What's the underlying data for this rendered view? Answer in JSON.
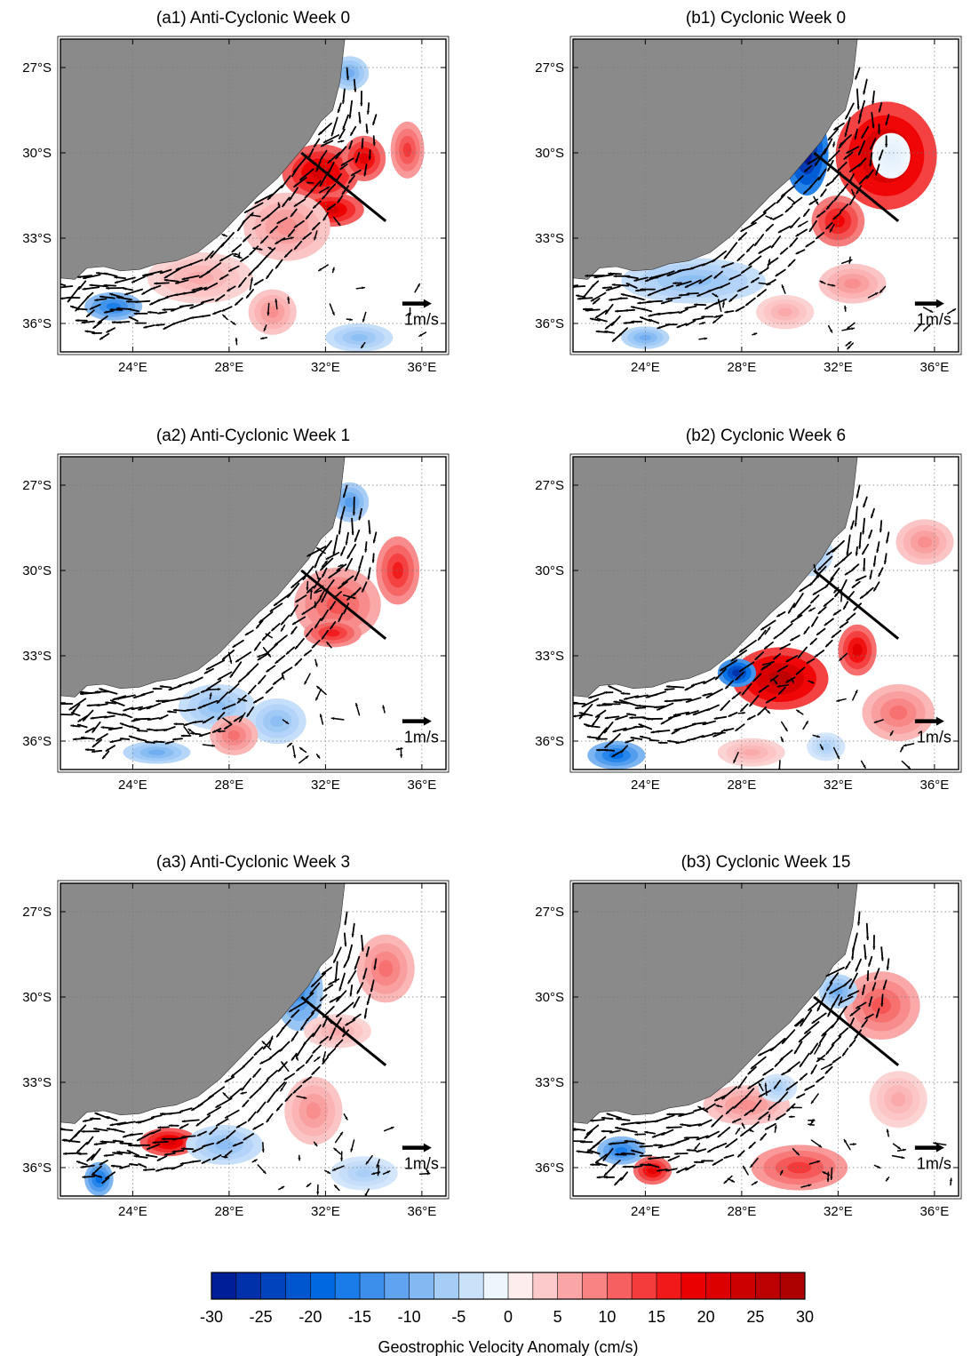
{
  "panels": [
    {
      "id": "a1",
      "title": "(a1) Anti-Cyclonic Week 0",
      "scale_label": "1m/s",
      "blobs": [
        {
          "lon": 31.8,
          "lat": -30.7,
          "rx": 1.6,
          "ry": 1.0,
          "v": 22
        },
        {
          "lon": 33.6,
          "lat": -30.2,
          "rx": 0.9,
          "ry": 0.8,
          "v": 20
        },
        {
          "lon": 32.2,
          "lat": -32.0,
          "rx": 1.4,
          "ry": 0.6,
          "v": 22
        },
        {
          "lon": 35.4,
          "lat": -29.9,
          "rx": 0.7,
          "ry": 1.0,
          "v": 14
        },
        {
          "lon": 30.4,
          "lat": -32.6,
          "rx": 1.8,
          "ry": 1.2,
          "v": 8
        },
        {
          "lon": 33.0,
          "lat": -27.2,
          "rx": 0.8,
          "ry": 0.6,
          "v": -10
        },
        {
          "lon": 23.2,
          "lat": -35.4,
          "rx": 1.2,
          "ry": 0.5,
          "v": -16
        },
        {
          "lon": 26.8,
          "lat": -34.4,
          "rx": 2.2,
          "ry": 0.9,
          "v": 6
        },
        {
          "lon": 29.8,
          "lat": -35.6,
          "rx": 1.0,
          "ry": 0.8,
          "v": 8
        },
        {
          "lon": 33.4,
          "lat": -36.5,
          "rx": 1.4,
          "ry": 0.5,
          "v": -8
        }
      ]
    },
    {
      "id": "b1",
      "title": "(b1) Cyclonic Week 0",
      "scale_label": "1m/s",
      "blobs": [
        {
          "lon": 30.7,
          "lat": -30.0,
          "rx": 0.9,
          "ry": 1.5,
          "v": -30
        },
        {
          "lon": 34.0,
          "lat": -30.1,
          "rx": 2.1,
          "ry": 1.9,
          "v": 26
        },
        {
          "lon": 34.2,
          "lat": -30.1,
          "rx": 0.8,
          "ry": 0.8,
          "v": -2
        },
        {
          "lon": 32.0,
          "lat": -32.4,
          "rx": 1.1,
          "ry": 0.9,
          "v": 18
        },
        {
          "lon": 26.0,
          "lat": -34.5,
          "rx": 3.0,
          "ry": 0.8,
          "v": -8
        },
        {
          "lon": 32.6,
          "lat": -34.6,
          "rx": 1.4,
          "ry": 0.7,
          "v": 8
        },
        {
          "lon": 29.8,
          "lat": -35.6,
          "rx": 1.2,
          "ry": 0.6,
          "v": 6
        },
        {
          "lon": 24.0,
          "lat": -36.5,
          "rx": 1.0,
          "ry": 0.4,
          "v": -10
        }
      ]
    },
    {
      "id": "a2",
      "title": "(a2) Anti-Cyclonic Week 1",
      "scale_label": "1m/s",
      "blobs": [
        {
          "lon": 32.5,
          "lat": -31.2,
          "rx": 1.8,
          "ry": 1.3,
          "v": 12
        },
        {
          "lon": 35.0,
          "lat": -30.0,
          "rx": 0.9,
          "ry": 1.2,
          "v": 16
        },
        {
          "lon": 32.3,
          "lat": -32.2,
          "rx": 1.2,
          "ry": 0.5,
          "v": 16
        },
        {
          "lon": 33.0,
          "lat": -27.6,
          "rx": 0.8,
          "ry": 0.7,
          "v": -12
        },
        {
          "lon": 27.5,
          "lat": -34.8,
          "rx": 1.6,
          "ry": 0.8,
          "v": -8
        },
        {
          "lon": 30.0,
          "lat": -35.3,
          "rx": 1.2,
          "ry": 0.8,
          "v": -8
        },
        {
          "lon": 28.2,
          "lat": -35.8,
          "rx": 1.0,
          "ry": 0.7,
          "v": 10
        },
        {
          "lon": 25.0,
          "lat": -36.4,
          "rx": 1.4,
          "ry": 0.4,
          "v": -10
        }
      ]
    },
    {
      "id": "b2",
      "title": "(b2) Cyclonic Week 6",
      "scale_label": "1m/s",
      "blobs": [
        {
          "lon": 29.6,
          "lat": -33.8,
          "rx": 2.0,
          "ry": 1.1,
          "v": 26
        },
        {
          "lon": 27.8,
          "lat": -33.6,
          "rx": 0.8,
          "ry": 0.5,
          "v": -26
        },
        {
          "lon": 32.8,
          "lat": -32.8,
          "rx": 0.8,
          "ry": 0.9,
          "v": 20
        },
        {
          "lon": 30.8,
          "lat": -29.4,
          "rx": 1.0,
          "ry": 0.8,
          "v": -8
        },
        {
          "lon": 35.6,
          "lat": -29.0,
          "rx": 1.2,
          "ry": 0.8,
          "v": 8
        },
        {
          "lon": 22.8,
          "lat": -36.5,
          "rx": 1.2,
          "ry": 0.5,
          "v": -18
        },
        {
          "lon": 34.5,
          "lat": -35.0,
          "rx": 1.5,
          "ry": 1.0,
          "v": 10
        },
        {
          "lon": 28.4,
          "lat": -36.4,
          "rx": 1.4,
          "ry": 0.5,
          "v": 6
        },
        {
          "lon": 31.5,
          "lat": -36.2,
          "rx": 0.8,
          "ry": 0.5,
          "v": -6
        }
      ]
    },
    {
      "id": "a3",
      "title": "(a3) Anti-Cyclonic Week 3",
      "scale_label": "1m/s",
      "blobs": [
        {
          "lon": 30.9,
          "lat": -29.8,
          "rx": 1.0,
          "ry": 1.4,
          "v": -14
        },
        {
          "lon": 25.5,
          "lat": -35.1,
          "rx": 1.2,
          "ry": 0.5,
          "v": 22
        },
        {
          "lon": 34.5,
          "lat": -29.0,
          "rx": 1.2,
          "ry": 1.2,
          "v": 10
        },
        {
          "lon": 31.5,
          "lat": -34.0,
          "rx": 1.2,
          "ry": 1.2,
          "v": 8
        },
        {
          "lon": 27.8,
          "lat": -35.2,
          "rx": 1.6,
          "ry": 0.7,
          "v": -8
        },
        {
          "lon": 22.6,
          "lat": -36.4,
          "rx": 0.6,
          "ry": 0.6,
          "v": -18
        },
        {
          "lon": 32.5,
          "lat": -31.2,
          "rx": 1.4,
          "ry": 0.6,
          "v": 6
        },
        {
          "lon": 33.6,
          "lat": -36.2,
          "rx": 1.4,
          "ry": 0.6,
          "v": -6
        }
      ]
    },
    {
      "id": "b3",
      "title": "(b3) Cyclonic Week 15",
      "scale_label": "1m/s",
      "blobs": [
        {
          "lon": 33.8,
          "lat": -30.3,
          "rx": 1.6,
          "ry": 1.2,
          "v": 12
        },
        {
          "lon": 32.0,
          "lat": -29.8,
          "rx": 0.8,
          "ry": 0.6,
          "v": -10
        },
        {
          "lon": 30.4,
          "lat": -36.0,
          "rx": 2.0,
          "ry": 0.8,
          "v": 14
        },
        {
          "lon": 24.3,
          "lat": -36.1,
          "rx": 0.8,
          "ry": 0.5,
          "v": 20
        },
        {
          "lon": 23.0,
          "lat": -35.4,
          "rx": 1.0,
          "ry": 0.5,
          "v": -16
        },
        {
          "lon": 28.2,
          "lat": -33.8,
          "rx": 1.8,
          "ry": 0.7,
          "v": 8
        },
        {
          "lon": 29.5,
          "lat": -33.2,
          "rx": 0.8,
          "ry": 0.5,
          "v": -6
        },
        {
          "lon": 34.5,
          "lat": -33.6,
          "rx": 1.2,
          "ry": 1.0,
          "v": 6
        }
      ]
    }
  ],
  "axes": {
    "lon_ticks": [
      "24°E",
      "28°E",
      "32°E",
      "36°E"
    ],
    "lat_ticks": [
      "27°S",
      "30°S",
      "33°S",
      "36°S"
    ],
    "lon_range": [
      21.0,
      37.0
    ],
    "lat_range": [
      -37.0,
      -26.0
    ]
  },
  "coast": [
    [
      21.0,
      -34.4
    ],
    [
      21.6,
      -34.45
    ],
    [
      22.1,
      -34.05
    ],
    [
      22.8,
      -34.0
    ],
    [
      23.5,
      -34.15
    ],
    [
      24.3,
      -34.1
    ],
    [
      25.0,
      -33.9
    ],
    [
      25.8,
      -33.8
    ],
    [
      26.7,
      -33.5
    ],
    [
      27.6,
      -32.9
    ],
    [
      28.4,
      -32.2
    ],
    [
      29.2,
      -31.5
    ],
    [
      30.0,
      -30.9
    ],
    [
      30.7,
      -30.2
    ],
    [
      31.3,
      -29.6
    ],
    [
      31.8,
      -28.9
    ],
    [
      32.3,
      -28.5
    ],
    [
      32.6,
      -27.5
    ],
    [
      32.8,
      -26.0
    ]
  ],
  "section_line": [
    [
      31.0,
      -30.0
    ],
    [
      34.5,
      -32.4
    ]
  ],
  "velocity_scale": {
    "label": "1m/s",
    "lon": 35.3,
    "lat": -35.3
  },
  "colorbar": {
    "title": "Geostrophic Velocity Anomaly (cm/s)",
    "ticks": [
      "-30",
      "-25",
      "-20",
      "-15",
      "-10",
      "-5",
      "0",
      "5",
      "10",
      "15",
      "20",
      "25",
      "30"
    ],
    "range": [
      -30,
      30
    ],
    "levels": 24,
    "low_color": "#00158f",
    "mid_color": "#ffffff",
    "high_color": "#a50000"
  },
  "colors": {
    "land": "#8a8a8a",
    "arrows": "#000000",
    "grid": "#7a7a7a"
  }
}
